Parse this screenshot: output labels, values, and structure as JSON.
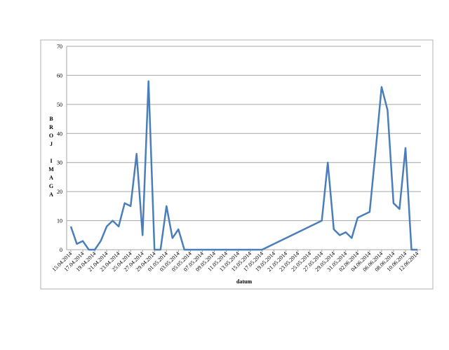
{
  "chart_data": {
    "type": "line",
    "x_label": "datum",
    "y_label": "BROJ IMAGA",
    "x": [
      "15.04.2014",
      "16.04.2014",
      "17.04.2014",
      "18.04.2014",
      "19.04.2014",
      "20.04.2014",
      "21.04.2014",
      "22.04.2014",
      "23.04.2014",
      "24.04.2014",
      "25.04.2014",
      "26.04.2014",
      "27.04.2014",
      "28.04.2014",
      "29.04.2014",
      "30.04.2014",
      "01.05.2014",
      "02.05.2014",
      "03.05.2014",
      "04.05.2014",
      "05.05.2014",
      "06.05.2014",
      "07.05.2014",
      "08.05.2014",
      "09.05.2014",
      "10.05.2014",
      "11.05.2014",
      "12.05.2014",
      "13.05.2014",
      "14.05.2014",
      "15.05.2014",
      "16.05.2014",
      "17.05.2014",
      "27.05.2014",
      "28.05.2014",
      "29.05.2014",
      "30.05.2014",
      "31.05.2014",
      "01.06.2014",
      "02.06.2014",
      "03.06.2014",
      "04.06.2014",
      "05.06.2014",
      "06.06.2014",
      "07.06.2014",
      "08.06.2014",
      "09.06.2014",
      "10.06.2014",
      "11.06.2014",
      "12.06.2014"
    ],
    "series": [
      {
        "color": "#4a7ebb",
        "values": [
          8,
          2,
          3,
          0,
          0,
          3,
          8,
          10,
          8,
          16,
          15,
          33,
          5,
          58,
          0,
          0,
          15,
          4,
          7,
          0,
          0,
          0,
          0,
          0,
          0,
          0,
          0,
          0,
          0,
          0,
          0,
          0,
          0,
          10,
          30,
          7,
          5,
          6,
          4,
          11,
          12,
          13,
          34,
          56,
          48,
          16,
          14,
          35,
          0,
          0
        ]
      }
    ],
    "xticks": [
      "15.04.2014",
      "17.04.2014",
      "19.04.2014",
      "21.04.2014",
      "23.04.2014",
      "25.04.2014",
      "27.04.2014",
      "29.04.2014",
      "01.05.2014",
      "03.05.2014",
      "05.05.2014",
      "07.05.2014",
      "09.05.2014",
      "11.05.2014",
      "13.05.2014",
      "15.05.2014",
      "17.05.2014",
      "19.05.2014",
      "21.05.2014",
      "23.05.2014",
      "25.05.2014",
      "27.05.2014",
      "29.05.2014",
      "31.05.2014",
      "02.06.2014",
      "04.06.2014",
      "06.06.2014",
      "08.06.2014",
      "10.06.2014",
      "12.06.2014"
    ],
    "ylim": [
      0,
      70
    ],
    "yticks": [
      0,
      10,
      20,
      30,
      40,
      50,
      60,
      70
    ],
    "grid": true
  }
}
